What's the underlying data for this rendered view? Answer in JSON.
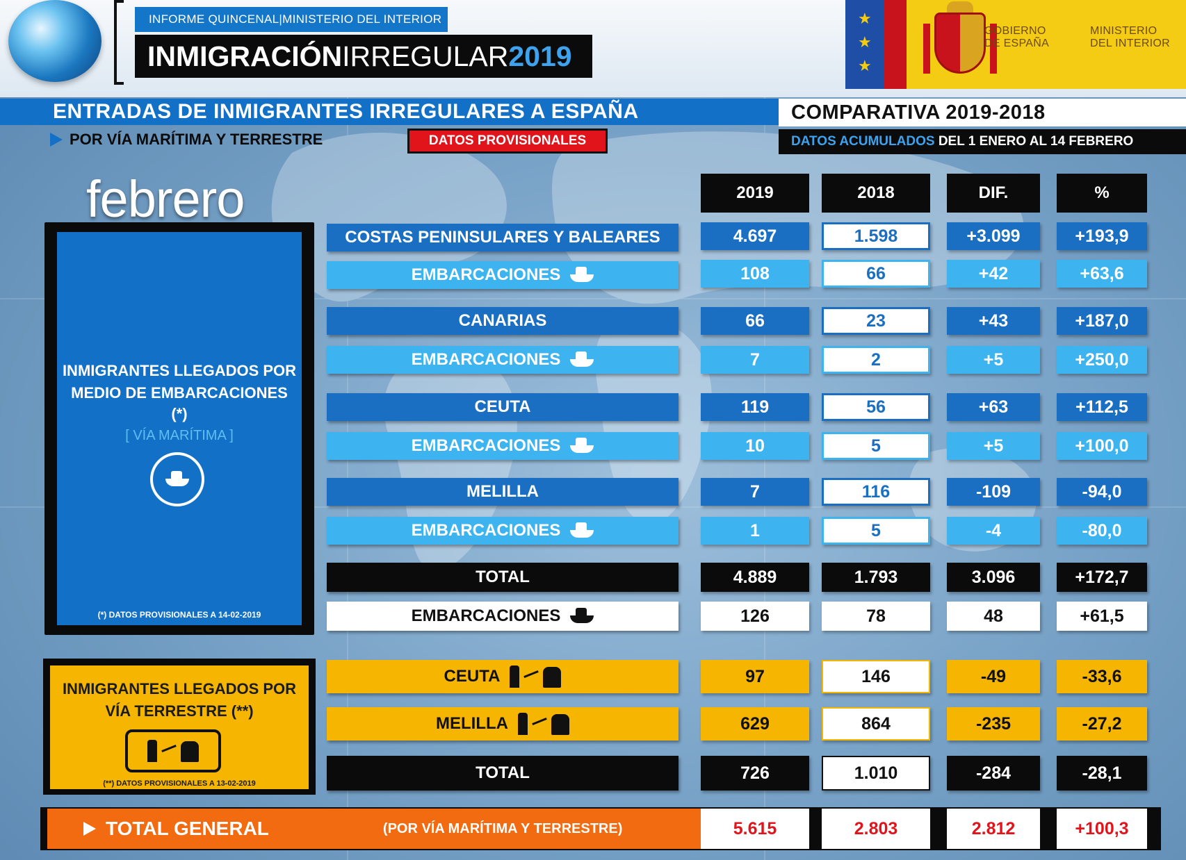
{
  "header": {
    "sup_left": "INFORME QUINCENAL",
    "sup_sep": "|",
    "sup_right": "MINISTERIO DEL INTERIOR",
    "title_bold": "INMIGRACIÓN",
    "title_rest": "IRREGULAR",
    "title_year": "2019",
    "gov_1": "GOBIERNO",
    "gov_2": "DE ESPAÑA",
    "min_1": "MINISTERIO",
    "min_2": "DEL INTERIOR"
  },
  "section": {
    "main": "ENTRADAS DE INMIGRANTES IRREGULARES A ESPAÑA",
    "sub": "POR VÍA MARÍTIMA Y TERRESTRE",
    "provisional": "DATOS PROVISIONALES",
    "comparativa": "COMPARATIVA  2019-2018",
    "acum_a": "DATOS ACUMULADOS",
    "acum_b": " DEL 1 ENERO AL 14 FEBRERO",
    "month": "febrero"
  },
  "maritime_panel": {
    "line1": "INMIGRANTES LLEGADOS POR",
    "line2": "MEDIO DE EMBARCACIONES",
    "line3": "(*)",
    "via": "[ VÍA MARÍTIMA ]",
    "note": "(*)  DATOS PROVISIONALES A 14-02-2019"
  },
  "land_panel": {
    "line1": "INMIGRANTES LLEGADOS POR",
    "line2": "VÍA TERRESTRE (**)",
    "note": "(**)  DATOS PROVISIONALES A 13-02-2019"
  },
  "columns": [
    "2019",
    "2018",
    "DIF.",
    "%"
  ],
  "rows": [
    {
      "label": "COSTAS PENINSULARES Y BALEARES",
      "v2019": "4.697",
      "v2018": "1.598",
      "dif": "+3.099",
      "pct": "+193,9"
    },
    {
      "label": "EMBARCACIONES",
      "v2019": "108",
      "v2018": "66",
      "dif": "+42",
      "pct": "+63,6"
    },
    {
      "label": "CANARIAS",
      "v2019": "66",
      "v2018": "23",
      "dif": "+43",
      "pct": "+187,0"
    },
    {
      "label": "EMBARCACIONES",
      "v2019": "7",
      "v2018": "2",
      "dif": "+5",
      "pct": "+250,0"
    },
    {
      "label": "CEUTA",
      "v2019": "119",
      "v2018": "56",
      "dif": "+63",
      "pct": "+112,5"
    },
    {
      "label": "EMBARCACIONES",
      "v2019": "10",
      "v2018": "5",
      "dif": "+5",
      "pct": "+100,0"
    },
    {
      "label": "MELILLA",
      "v2019": "7",
      "v2018": "116",
      "dif": "-109",
      "pct": "-94,0"
    },
    {
      "label": "EMBARCACIONES",
      "v2019": "1",
      "v2018": "5",
      "dif": "-4",
      "pct": "-80,0"
    },
    {
      "label": "TOTAL",
      "v2019": "4.889",
      "v2018": "1.793",
      "dif": "3.096",
      "pct": "+172,7"
    },
    {
      "label": "EMBARCACIONES",
      "v2019": "126",
      "v2018": "78",
      "dif": "48",
      "pct": "+61,5"
    },
    {
      "label": "CEUTA",
      "v2019": "97",
      "v2018": "146",
      "dif": "-49",
      "pct": "-33,6"
    },
    {
      "label": "MELILLA",
      "v2019": "629",
      "v2018": "864",
      "dif": "-235",
      "pct": "-27,2"
    },
    {
      "label": "TOTAL",
      "v2019": "726",
      "v2018": "1.010",
      "dif": "-284",
      "pct": "-28,1"
    }
  ],
  "total_general": {
    "label": "TOTAL GENERAL",
    "sub": "(POR VÍA MARÍTIMA Y TERRESTRE)",
    "v2019": "5.615",
    "v2018": "2.803",
    "dif": "2.812",
    "pct": "+100,3"
  }
}
